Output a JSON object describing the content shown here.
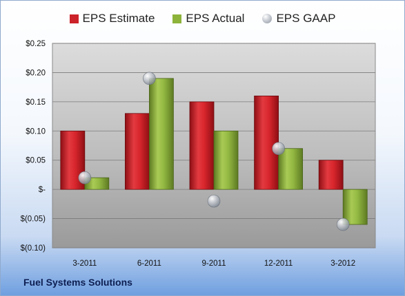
{
  "company": "Fuel Systems Solutions",
  "legend": [
    {
      "label": "EPS Estimate",
      "icon": "square-swatch",
      "color": "#cc2229"
    },
    {
      "label": "EPS Actual",
      "icon": "square-swatch",
      "color": "#8db33a"
    },
    {
      "label": "EPS GAAP",
      "icon": "sphere-swatch",
      "color": "#b9bec6"
    }
  ],
  "chart_data": {
    "type": "bar",
    "categories": [
      "3-2011",
      "6-2011",
      "9-2011",
      "12-2011",
      "3-2012"
    ],
    "series": [
      {
        "name": "EPS Estimate",
        "values": [
          0.1,
          0.13,
          0.15,
          0.16,
          0.05
        ],
        "color": "#cc2229"
      },
      {
        "name": "EPS Actual",
        "values": [
          0.02,
          0.19,
          0.1,
          0.07,
          -0.06
        ],
        "color": "#8db33a"
      },
      {
        "name": "EPS GAAP",
        "type": "scatter",
        "values": [
          0.02,
          0.19,
          -0.02,
          0.07,
          -0.06
        ],
        "color": "#b9bec6"
      }
    ],
    "ylim": [
      -0.1,
      0.25
    ],
    "yticks": [
      0.25,
      0.2,
      0.15,
      0.1,
      0.05,
      0,
      -0.05,
      -0.1
    ],
    "ytick_labels": [
      "$0.25",
      "$0.20",
      "$0.15",
      "$0.10",
      "$0.05",
      "$-",
      "$(0.05)",
      "$(0.10)"
    ],
    "grid": true,
    "legend_position": "top"
  }
}
